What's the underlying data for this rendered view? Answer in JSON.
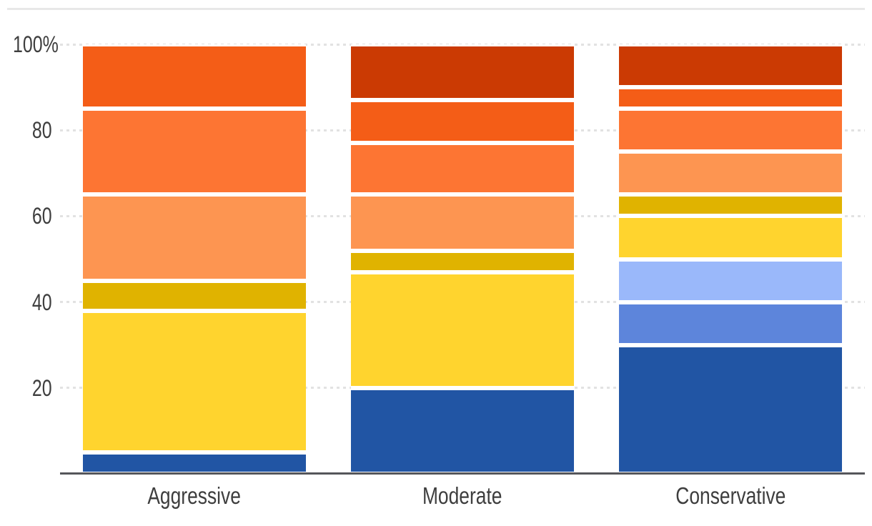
{
  "chart_data": {
    "type": "bar",
    "stacking": "percent",
    "orientation": "vertical",
    "title": "",
    "xlabel": "",
    "ylabel": "",
    "categories": [
      "Aggressive",
      "Moderate",
      "Conservative"
    ],
    "y_tick_labels": [
      "100%",
      "80",
      "60",
      "40",
      "20"
    ],
    "y_tick_values": [
      100,
      80,
      60,
      40,
      20
    ],
    "ylim": [
      0,
      100
    ],
    "grid": "horizontal-dashed",
    "legend": "none",
    "axis_color": "#55565a",
    "grid_color": "#e2e2e2",
    "label_color": "#3e3e3e",
    "divider_color": "#e8e8e8",
    "series": [
      {
        "name": "dark-blue",
        "color": "#2155A4",
        "values": [
          5,
          20,
          30
        ]
      },
      {
        "name": "medium-blue",
        "color": "#5D85DB",
        "values": [
          0,
          0,
          10
        ]
      },
      {
        "name": "light-blue",
        "color": "#9AB8FA",
        "values": [
          0,
          0,
          10
        ]
      },
      {
        "name": "yellow",
        "color": "#FFD42E",
        "values": [
          33,
          27,
          10
        ]
      },
      {
        "name": "gold",
        "color": "#E0B300",
        "values": [
          7,
          5,
          5
        ]
      },
      {
        "name": "light-orange",
        "color": "#FD9551",
        "values": [
          20,
          13,
          10
        ]
      },
      {
        "name": "orange",
        "color": "#FD7533",
        "values": [
          20,
          12,
          10
        ]
      },
      {
        "name": "red-orange",
        "color": "#F45D17",
        "values": [
          15,
          10,
          5
        ]
      },
      {
        "name": "dark-red",
        "color": "#CB3A03",
        "values": [
          0,
          13,
          10
        ]
      }
    ]
  }
}
